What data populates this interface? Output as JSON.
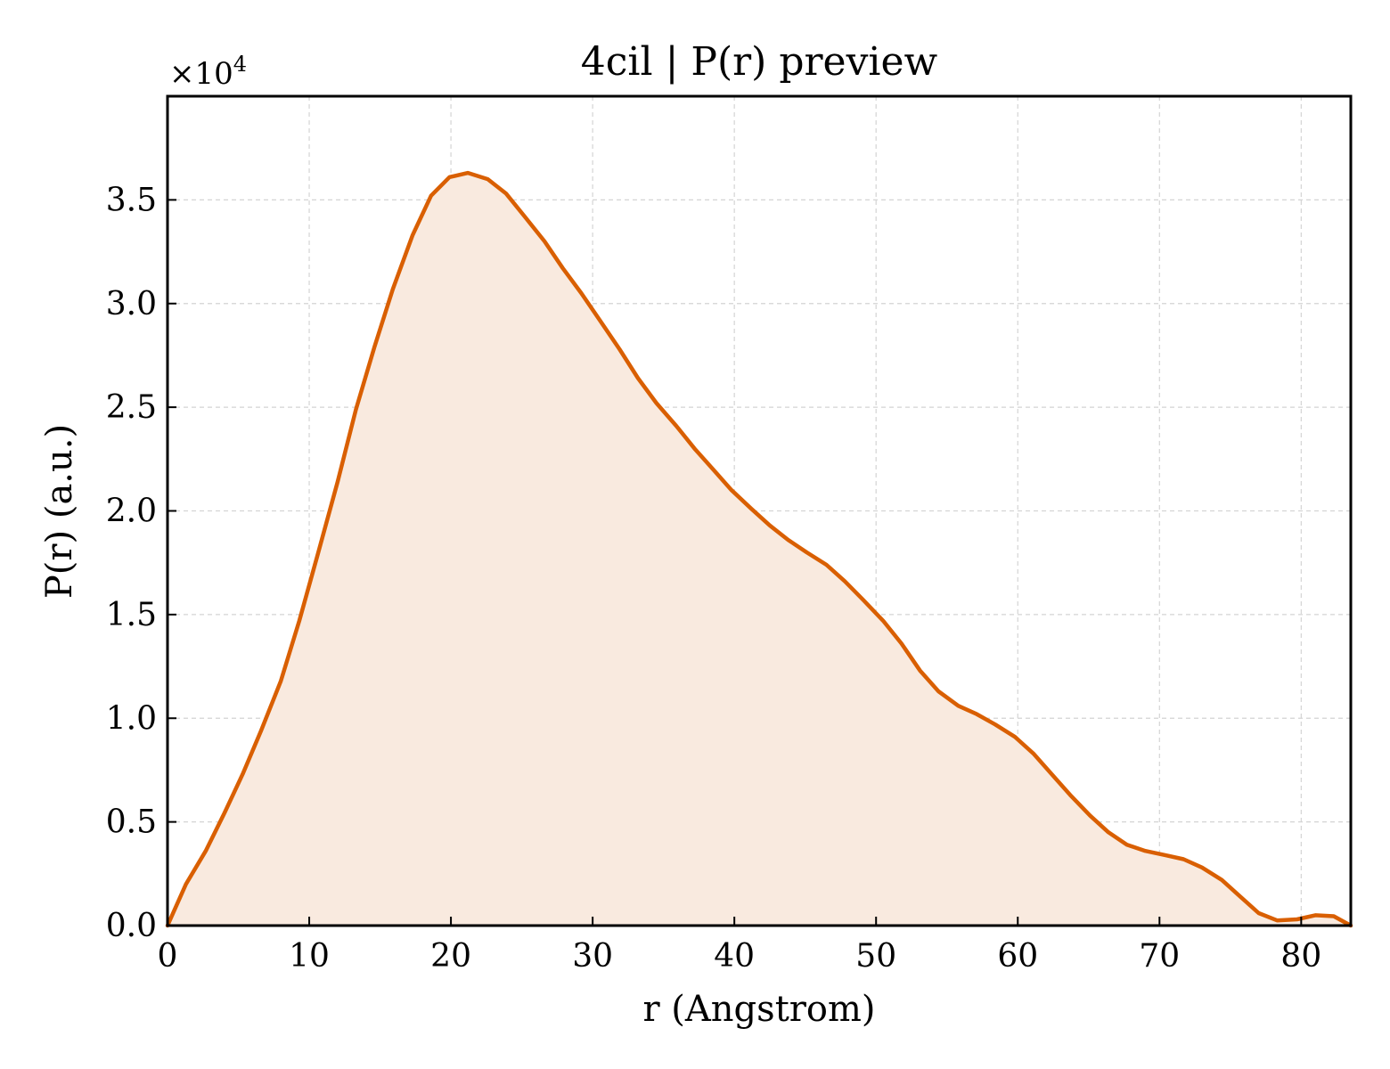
{
  "chart_data": {
    "type": "area",
    "title": "4cil | P(r) preview",
    "xlabel": "r (Angstrom)",
    "ylabel": "P(r) (a.u.)",
    "y_multiplier_label": "×10",
    "y_multiplier_exponent": "4",
    "xlim": [
      0,
      83.5
    ],
    "ylim": [
      0,
      4.0
    ],
    "x_ticks": [
      0,
      10,
      20,
      30,
      40,
      50,
      60,
      70,
      80
    ],
    "x_tick_labels": [
      "0",
      "10",
      "20",
      "30",
      "40",
      "50",
      "60",
      "70",
      "80"
    ],
    "y_ticks": [
      0,
      0.5,
      1.0,
      1.5,
      2.0,
      2.5,
      3.0,
      3.5
    ],
    "y_tick_labels": [
      "0.0",
      "0.5",
      "1.0",
      "1.5",
      "2.0",
      "2.5",
      "3.0",
      "3.5"
    ],
    "grid": true,
    "colors": {
      "line": "#d95f02",
      "fill": "#f9eadf"
    },
    "series": [
      {
        "x": [
          0,
          1.3,
          2.7,
          4.0,
          5.3,
          6.6,
          8.0,
          9.3,
          10.6,
          12.0,
          13.3,
          14.6,
          15.9,
          17.3,
          18.6,
          19.9,
          21.2,
          22.6,
          23.9,
          25.2,
          26.6,
          27.9,
          29.2,
          30.5,
          31.9,
          33.2,
          34.5,
          35.9,
          37.2,
          38.5,
          39.8,
          41.2,
          42.5,
          43.8,
          45.1,
          46.5,
          47.8,
          49.1,
          50.5,
          51.8,
          53.1,
          54.4,
          55.8,
          57.1,
          58.4,
          59.8,
          61.1,
          62.4,
          63.7,
          65.1,
          66.4,
          67.7,
          69.0,
          70.4,
          71.7,
          73.0,
          74.4,
          75.7,
          77.0,
          78.3,
          79.7,
          81.0,
          82.3,
          83.5
        ],
        "y": [
          0.0,
          0.2,
          0.36,
          0.54,
          0.73,
          0.94,
          1.18,
          1.47,
          1.79,
          2.14,
          2.49,
          2.79,
          3.07,
          3.33,
          3.52,
          3.61,
          3.63,
          3.6,
          3.53,
          3.42,
          3.3,
          3.17,
          3.05,
          2.92,
          2.78,
          2.64,
          2.52,
          2.41,
          2.3,
          2.2,
          2.1,
          2.01,
          1.93,
          1.86,
          1.8,
          1.74,
          1.66,
          1.57,
          1.47,
          1.36,
          1.23,
          1.13,
          1.06,
          1.02,
          0.97,
          0.91,
          0.83,
          0.73,
          0.63,
          0.53,
          0.45,
          0.39,
          0.36,
          0.34,
          0.32,
          0.28,
          0.22,
          0.14,
          0.06,
          0.025,
          0.03,
          0.05,
          0.045,
          0.0
        ]
      }
    ]
  }
}
